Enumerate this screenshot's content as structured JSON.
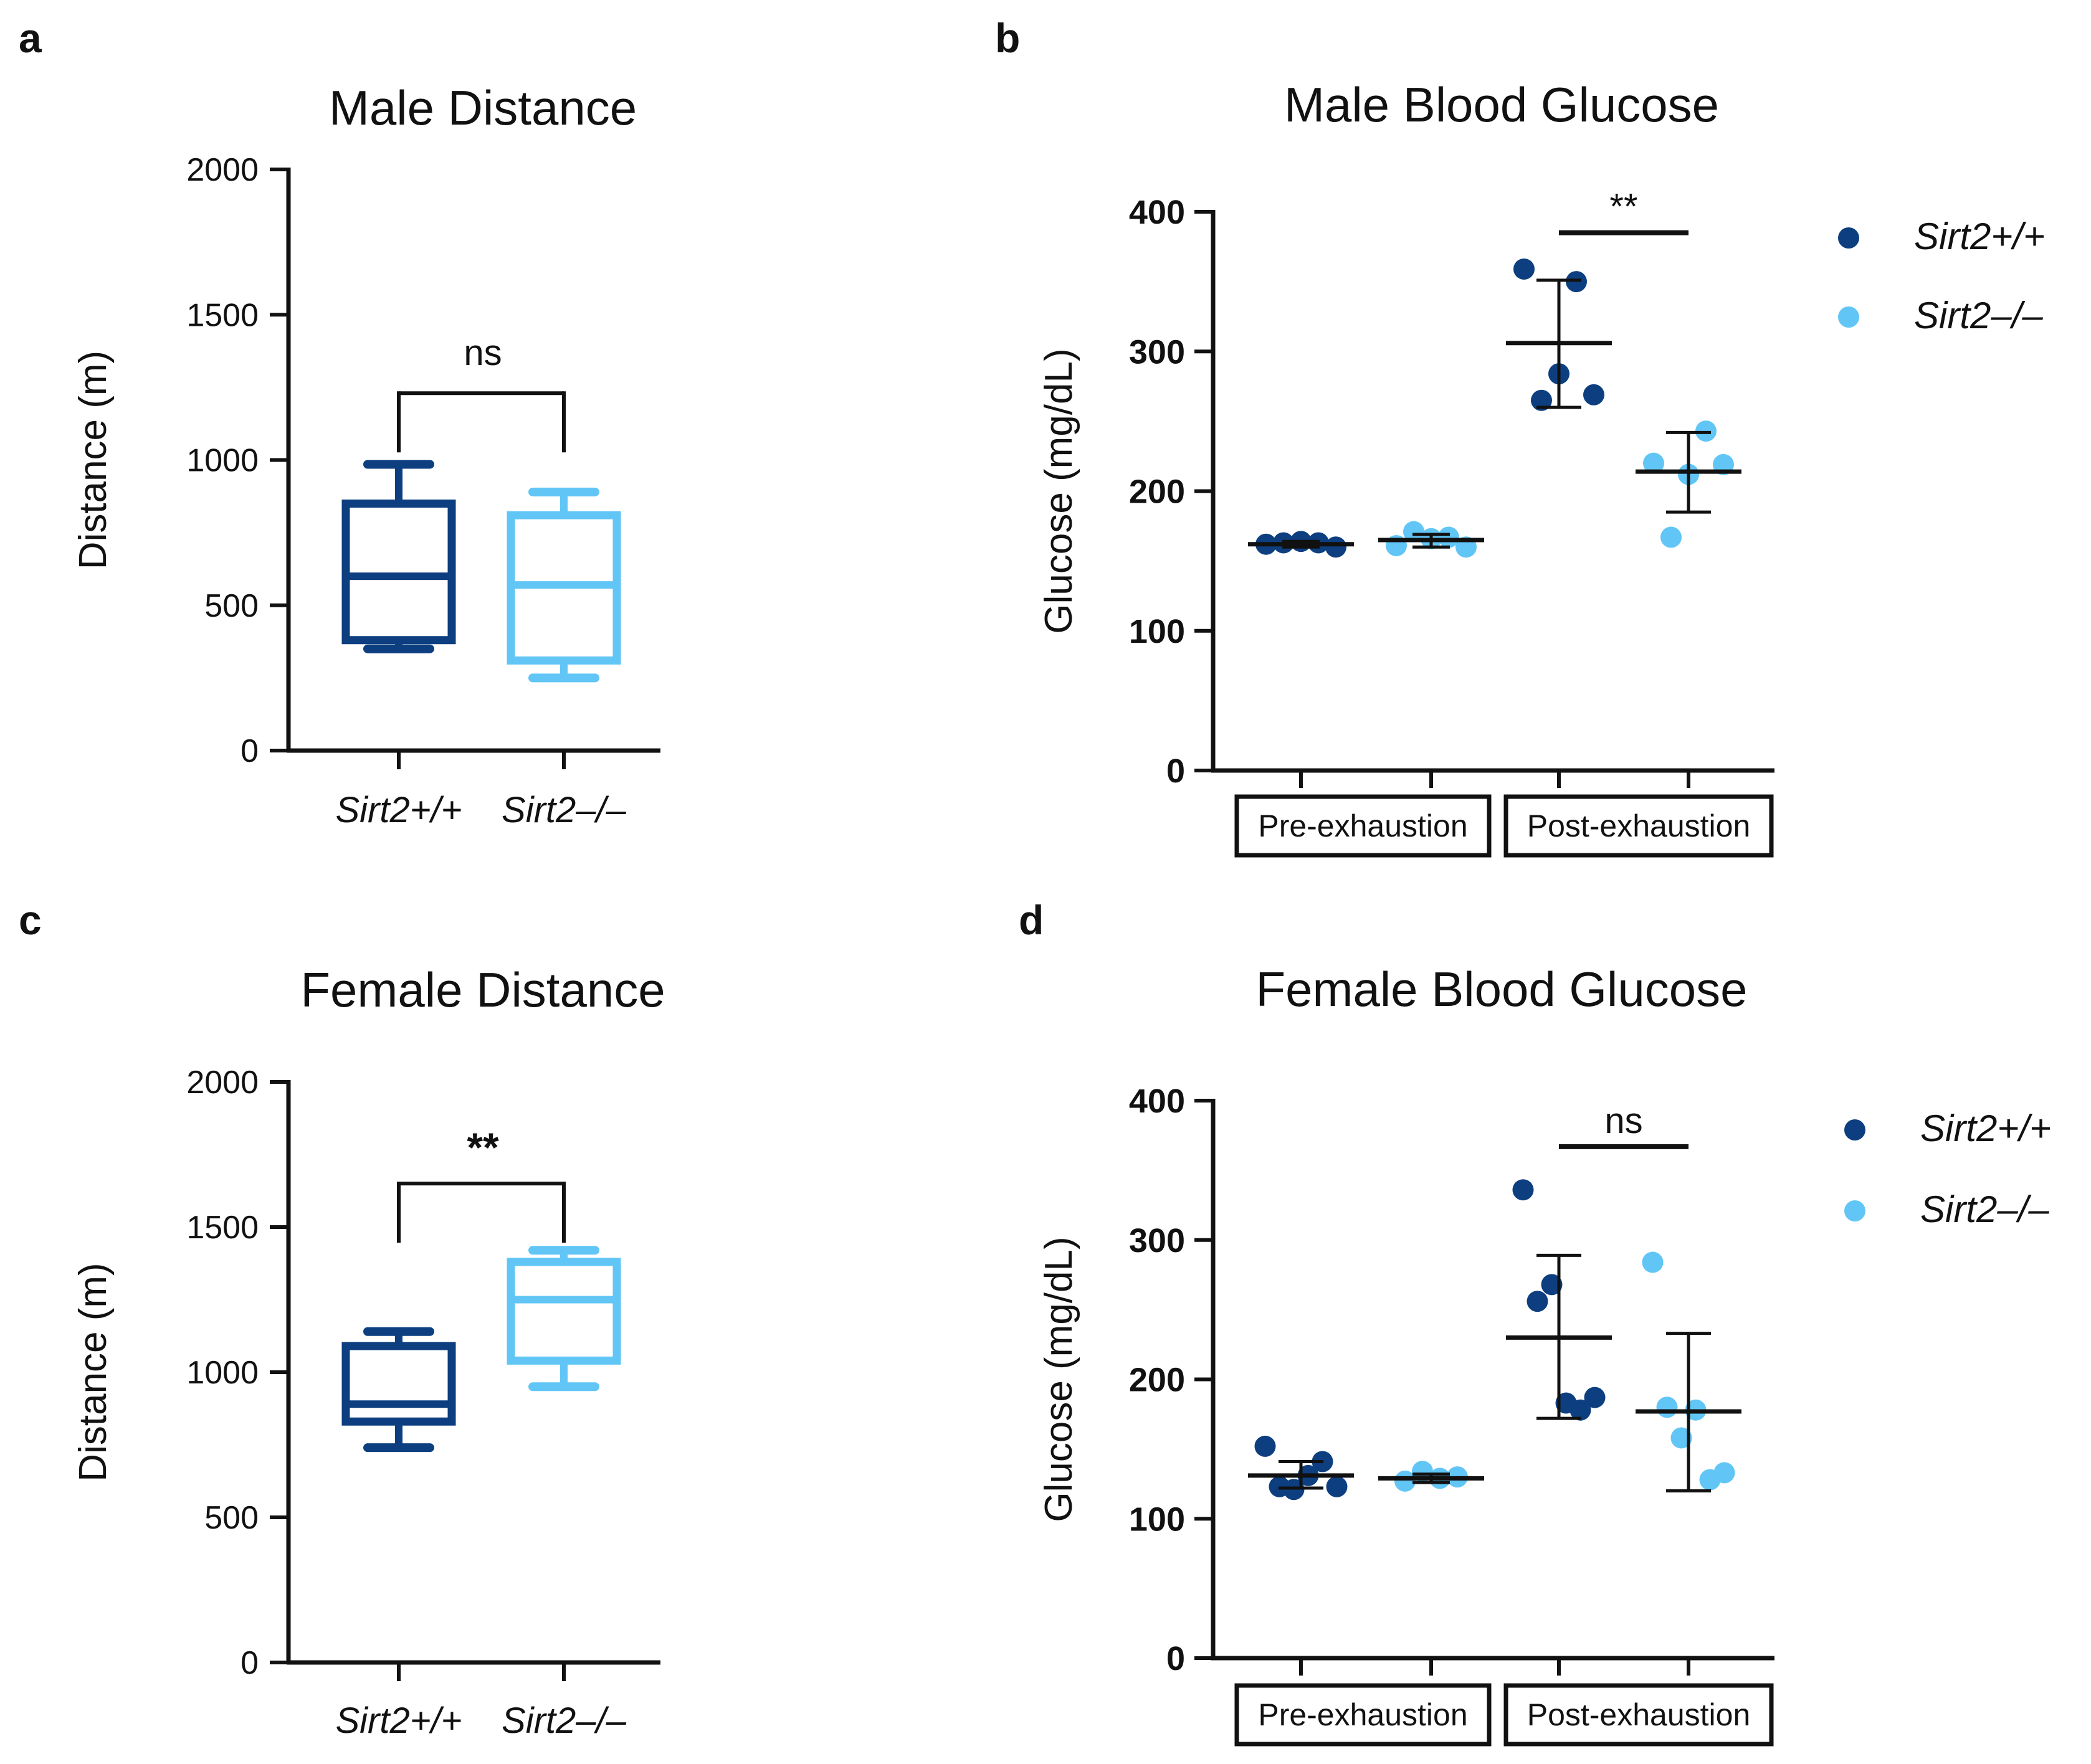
{
  "colors": {
    "wildtype": "#0d3f80",
    "knockout": "#61c6f6",
    "axis": "#111111"
  },
  "chart_data": [
    {
      "panel": "a",
      "type": "box",
      "title": "Male Distance",
      "ylabel": "Distance (m)",
      "ylim": [
        0,
        2000
      ],
      "yticks": [
        "0",
        "500",
        "1000",
        "1500",
        "2000"
      ],
      "categories": [
        "Sirt2+/+",
        "Sirt2–/–"
      ],
      "boxes": [
        {
          "name": "Sirt2+/+",
          "min": 350,
          "q1": 380,
          "median": 600,
          "q3": 850,
          "max": 985
        },
        {
          "name": "Sirt2–/–",
          "min": 250,
          "q1": 310,
          "median": 570,
          "q3": 810,
          "max": 890
        }
      ],
      "comparison": {
        "label": "ns",
        "y": 1230
      }
    },
    {
      "panel": "b",
      "type": "scatter",
      "title": "Male Blood Glucose",
      "ylabel": "Glucose (mg/dL)",
      "ylim": [
        0,
        400
      ],
      "yticks": [
        "0",
        "100",
        "200",
        "300",
        "400"
      ],
      "groups": [
        "Pre-exhaustion",
        "Post-exhaustion"
      ],
      "legend": [
        "Sirt2+/+",
        "Sirt2–/–"
      ],
      "columns": [
        {
          "group": "Pre-exhaustion",
          "genotype": "Sirt2+/+",
          "mean": 162,
          "sd_low": 160,
          "sd_high": 164,
          "points": [
            162,
            163,
            164,
            163,
            160
          ]
        },
        {
          "group": "Pre-exhaustion",
          "genotype": "Sirt2–/–",
          "mean": 165,
          "sd_low": 160,
          "sd_high": 169,
          "points": [
            161,
            171,
            166,
            167,
            160
          ]
        },
        {
          "group": "Post-exhaustion",
          "genotype": "Sirt2+/+",
          "mean": 306,
          "sd_low": 260,
          "sd_high": 351,
          "points": [
            359,
            265,
            284,
            350,
            269
          ]
        },
        {
          "group": "Post-exhaustion",
          "genotype": "Sirt2–/–",
          "mean": 214,
          "sd_low": 185,
          "sd_high": 242,
          "points": [
            220,
            167,
            212,
            243,
            219
          ]
        }
      ],
      "comparison": {
        "label": "**",
        "y": 385
      }
    },
    {
      "panel": "c",
      "type": "box",
      "title": "Female Distance",
      "ylabel": "Distance (m)",
      "ylim": [
        0,
        2000
      ],
      "yticks": [
        "0",
        "500",
        "1000",
        "1500",
        "2000"
      ],
      "categories": [
        "Sirt2+/+",
        "Sirt2–/–"
      ],
      "boxes": [
        {
          "name": "Sirt2+/+",
          "min": 740,
          "q1": 830,
          "median": 890,
          "q3": 1090,
          "max": 1140
        },
        {
          "name": "Sirt2–/–",
          "min": 950,
          "q1": 1040,
          "median": 1250,
          "q3": 1380,
          "max": 1420
        }
      ],
      "comparison": {
        "label": "**",
        "y": 1650
      }
    },
    {
      "panel": "d",
      "type": "scatter",
      "title": "Female Blood Glucose",
      "ylabel": "Glucose (mg/dL)",
      "ylim": [
        0,
        400
      ],
      "yticks": [
        "0",
        "100",
        "200",
        "300",
        "400"
      ],
      "groups": [
        "Pre-exhaustion",
        "Post-exhaustion"
      ],
      "legend": [
        "Sirt2+/+",
        "Sirt2–/–"
      ],
      "columns": [
        {
          "group": "Pre-exhaustion",
          "genotype": "Sirt2+/+",
          "mean": 131,
          "sd_low": 122,
          "sd_high": 141,
          "points": [
            152,
            123,
            121,
            131,
            141,
            123
          ]
        },
        {
          "group": "Pre-exhaustion",
          "genotype": "Sirt2–/–",
          "mean": 129,
          "sd_low": 126,
          "sd_high": 132,
          "points": [
            127,
            134,
            129,
            130
          ]
        },
        {
          "group": "Post-exhaustion",
          "genotype": "Sirt2+/+",
          "mean": 230,
          "sd_low": 172,
          "sd_high": 289,
          "points": [
            336,
            256,
            268,
            183,
            178,
            187
          ]
        },
        {
          "group": "Post-exhaustion",
          "genotype": "Sirt2–/–",
          "mean": 177,
          "sd_low": 120,
          "sd_high": 233,
          "points": [
            284,
            180,
            158,
            178,
            128,
            133
          ]
        }
      ],
      "comparison": {
        "label": "ns",
        "y": 367
      }
    }
  ]
}
